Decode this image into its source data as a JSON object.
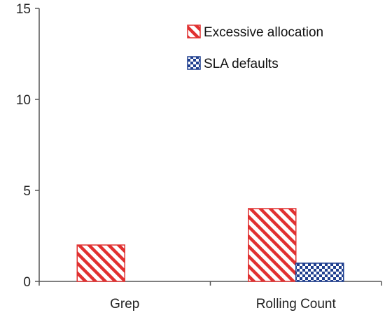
{
  "chart_data": {
    "type": "bar",
    "categories": [
      "Grep",
      "Rolling Count"
    ],
    "series": [
      {
        "name": "Excessive allocation",
        "values": [
          2,
          4
        ],
        "color": "#e03030",
        "pattern": "diagonal-stripes"
      },
      {
        "name": "SLA defaults",
        "values": [
          0,
          1
        ],
        "color": "#1f3f8f",
        "pattern": "checkerboard"
      }
    ],
    "yticks": [
      0,
      5,
      10,
      15
    ],
    "ylim": [
      0,
      15
    ],
    "grid": false,
    "legend_position": "top-right"
  }
}
